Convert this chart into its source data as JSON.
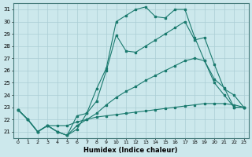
{
  "xlabel": "Humidex (Indice chaleur)",
  "bg_color": "#cce8ec",
  "grid_color": "#aacdd4",
  "line_color": "#1a7a6e",
  "xlim": [
    -0.5,
    23.5
  ],
  "ylim": [
    20.5,
    31.5
  ],
  "xticks": [
    0,
    1,
    2,
    3,
    4,
    5,
    6,
    7,
    8,
    9,
    10,
    11,
    12,
    13,
    14,
    15,
    16,
    17,
    18,
    19,
    20,
    21,
    22,
    23
  ],
  "yticks": [
    21,
    22,
    23,
    24,
    25,
    26,
    27,
    28,
    29,
    30,
    31
  ],
  "series": [
    [
      22.8,
      22.0,
      21.0,
      21.5,
      21.0,
      20.7,
      21.2,
      22.5,
      24.5,
      26.2,
      30.0,
      30.5,
      31.0,
      31.2,
      30.4,
      30.3,
      31.0,
      31.0,
      28.7,
      26.8,
      25.0,
      24.0,
      23.0,
      23.0
    ],
    [
      22.8,
      22.0,
      21.0,
      21.5,
      21.0,
      20.7,
      22.3,
      22.5,
      23.5,
      26.0,
      28.9,
      27.6,
      27.5,
      28.0,
      28.5,
      29.0,
      29.5,
      30.0,
      28.5,
      28.7,
      26.5,
      24.5,
      24.0,
      23.0
    ],
    [
      22.8,
      22.0,
      21.0,
      21.5,
      21.0,
      20.7,
      21.5,
      22.0,
      22.5,
      23.2,
      23.8,
      24.3,
      24.7,
      25.2,
      25.6,
      26.0,
      26.4,
      26.8,
      27.0,
      26.8,
      25.3,
      24.6,
      23.0,
      23.0
    ],
    [
      22.8,
      22.0,
      21.0,
      21.5,
      21.5,
      21.5,
      21.8,
      22.0,
      22.2,
      22.3,
      22.4,
      22.5,
      22.6,
      22.7,
      22.8,
      22.9,
      23.0,
      23.1,
      23.2,
      23.3,
      23.3,
      23.3,
      23.2,
      23.0
    ]
  ]
}
